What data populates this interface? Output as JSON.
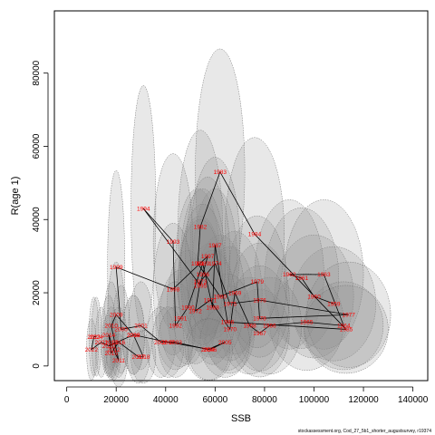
{
  "chart_data": {
    "type": "scatter",
    "title": "",
    "xlabel": "SSB",
    "ylabel": "R(age 1)",
    "credit": "stockassessment.org, Cod_27_5b1_shorter_augustsurvey, r19374",
    "xlim": [
      -5000,
      146000
    ],
    "ylim": [
      -4000,
      97000
    ],
    "xticks": [
      0,
      20000,
      40000,
      60000,
      80000,
      100000,
      120000,
      140000
    ],
    "yticks": [
      0,
      20000,
      40000,
      60000,
      80000
    ],
    "grid": false,
    "legend": "none",
    "line_color": "#000000",
    "label_color": "#ff0000",
    "ellipse_fill": "#8c8c8c",
    "ellipse_opacity": 0.2,
    "ellipse_stroke": "#6e6e6e",
    "points": [
      {
        "year": "1959",
        "ssb": 108000,
        "rec": 17000,
        "sd_ssb": 17000,
        "sd_rec": 6500
      },
      {
        "year": "1960",
        "ssb": 100000,
        "rec": 19000,
        "sd_ssb": 16000,
        "sd_rec": 7000
      },
      {
        "year": "1961",
        "ssb": 95000,
        "rec": 24000,
        "sd_ssb": 15000,
        "sd_rec": 8000
      },
      {
        "year": "1962",
        "ssb": 90000,
        "rec": 25000,
        "sd_ssb": 14000,
        "sd_rec": 8500
      },
      {
        "year": "1963",
        "ssb": 104000,
        "rec": 25000,
        "sd_ssb": 16000,
        "sd_rec": 8500
      },
      {
        "year": "1964",
        "ssb": 112000,
        "rec": 11000,
        "sd_ssb": 16000,
        "sd_rec": 5000
      },
      {
        "year": "1965",
        "ssb": 97000,
        "rec": 12000,
        "sd_ssb": 15000,
        "sd_rec": 5500
      },
      {
        "year": "1966",
        "ssb": 82000,
        "rec": 11000,
        "sd_ssb": 13000,
        "sd_rec": 5500
      },
      {
        "year": "1967",
        "ssb": 78000,
        "rec": 9000,
        "sd_ssb": 12000,
        "sd_rec": 5000
      },
      {
        "year": "1968",
        "ssb": 74000,
        "rec": 11000,
        "sd_ssb": 12000,
        "sd_rec": 5500
      },
      {
        "year": "1969",
        "ssb": 68000,
        "rec": 20000,
        "sd_ssb": 11000,
        "sd_rec": 7000
      },
      {
        "year": "1970",
        "ssb": 66000,
        "rec": 10000,
        "sd_ssb": 10000,
        "sd_rec": 5000
      },
      {
        "year": "1971",
        "ssb": 58000,
        "rec": 18000,
        "sd_ssb": 9000,
        "sd_rec": 6500
      },
      {
        "year": "1972",
        "ssb": 52000,
        "rec": 15000,
        "sd_ssb": 9000,
        "sd_rec": 6000
      },
      {
        "year": "1973",
        "ssb": 54000,
        "rec": 23000,
        "sd_ssb": 9000,
        "sd_rec": 7500
      },
      {
        "year": "1974",
        "ssb": 60000,
        "rec": 28000,
        "sd_ssb": 9000,
        "sd_rec": 8500
      },
      {
        "year": "1975",
        "ssb": 66000,
        "rec": 17000,
        "sd_ssb": 10000,
        "sd_rec": 6500
      },
      {
        "year": "1976",
        "ssb": 78000,
        "rec": 18000,
        "sd_ssb": 12000,
        "sd_rec": 6500
      },
      {
        "year": "1977",
        "ssb": 114000,
        "rec": 14000,
        "sd_ssb": 17000,
        "sd_rec": 6000
      },
      {
        "year": "1978",
        "ssb": 78000,
        "rec": 13000,
        "sd_ssb": 12000,
        "sd_rec": 6000
      },
      {
        "year": "1979",
        "ssb": 77000,
        "rec": 23000,
        "sd_ssb": 12000,
        "sd_rec": 7500
      },
      {
        "year": "1980",
        "ssb": 62000,
        "rec": 19000,
        "sd_ssb": 10000,
        "sd_rec": 7000
      },
      {
        "year": "1981",
        "ssb": 53000,
        "rec": 28000,
        "sd_ssb": 9000,
        "sd_rec": 8500
      },
      {
        "year": "1982",
        "ssb": 54000,
        "rec": 38000,
        "sd_ssb": 9000,
        "sd_rec": 11000
      },
      {
        "year": "1983",
        "ssb": 62000,
        "rec": 53000,
        "sd_ssb": 10000,
        "sd_rec": 14000
      },
      {
        "year": "1984",
        "ssb": 76000,
        "rec": 36000,
        "sd_ssb": 12000,
        "sd_rec": 11000
      },
      {
        "year": "1985",
        "ssb": 113000,
        "rec": 10000,
        "sd_ssb": 17000,
        "sd_rec": 5000
      },
      {
        "year": "1986",
        "ssb": 65000,
        "rec": 12000,
        "sd_ssb": 10000,
        "sd_rec": 5500
      },
      {
        "year": "1987",
        "ssb": 60000,
        "rec": 33000,
        "sd_ssb": 10000,
        "sd_rec": 10000
      },
      {
        "year": "1988",
        "ssb": 59000,
        "rec": 16000,
        "sd_ssb": 9500,
        "sd_rec": 6500
      },
      {
        "year": "1989",
        "ssb": 55000,
        "rec": 28000,
        "sd_ssb": 9000,
        "sd_rec": 8500
      },
      {
        "year": "1990",
        "ssb": 49000,
        "rec": 16000,
        "sd_ssb": 8500,
        "sd_rec": 6500
      },
      {
        "year": "1991",
        "ssb": 46000,
        "rec": 13000,
        "sd_ssb": 8500,
        "sd_rec": 5500
      },
      {
        "year": "1992",
        "ssb": 44000,
        "rec": 11000,
        "sd_ssb": 8000,
        "sd_rec": 5000
      },
      {
        "year": "1993",
        "ssb": 43000,
        "rec": 34000,
        "sd_ssb": 8000,
        "sd_rec": 10000
      },
      {
        "year": "1994",
        "ssb": 31000,
        "rec": 43000,
        "sd_ssb": 5000,
        "sd_rec": 14000
      },
      {
        "year": "1995",
        "ssb": 54000,
        "rec": 22000,
        "sd_ssb": 9000,
        "sd_rec": 7500
      },
      {
        "year": "1996",
        "ssb": 55000,
        "rec": 25000,
        "sd_ssb": 9000,
        "sd_rec": 8000
      },
      {
        "year": "1997",
        "ssb": 57000,
        "rec": 30000,
        "sd_ssb": 9000,
        "sd_rec": 9000
      },
      {
        "year": "1998",
        "ssb": 43000,
        "rec": 21000,
        "sd_ssb": 8000,
        "sd_rec": 7500
      },
      {
        "year": "1999",
        "ssb": 20000,
        "rec": 27000,
        "sd_ssb": 3500,
        "sd_rec": 11000
      },
      {
        "year": "2000",
        "ssb": 22000,
        "rec": 10000,
        "sd_ssb": 3500,
        "sd_rec": 5000
      },
      {
        "year": "2001",
        "ssb": 30000,
        "rec": 11000,
        "sd_ssb": 5000,
        "sd_rec": 5000
      },
      {
        "year": "2002",
        "ssb": 38000,
        "rec": 6500,
        "sd_ssb": 6000,
        "sd_rec": 4000
      },
      {
        "year": "2003",
        "ssb": 44000,
        "rec": 6500,
        "sd_ssb": 7000,
        "sd_rec": 4000
      },
      {
        "year": "2004",
        "ssb": 57000,
        "rec": 4500,
        "sd_ssb": 9000,
        "sd_rec": 3500
      },
      {
        "year": "2005",
        "ssb": 64000,
        "rec": 6500,
        "sd_ssb": 10000,
        "sd_rec": 4000
      },
      {
        "year": "2006",
        "ssb": 58000,
        "rec": 4500,
        "sd_ssb": 9000,
        "sd_rec": 3500
      },
      {
        "year": "2007",
        "ssb": 41000,
        "rec": 6500,
        "sd_ssb": 6500,
        "sd_rec": 4000
      },
      {
        "year": "2008",
        "ssb": 27000,
        "rec": 8500,
        "sd_ssb": 4500,
        "sd_rec": 4500
      },
      {
        "year": "2009",
        "ssb": 20000,
        "rec": 14000,
        "sd_ssb": 3500,
        "sd_rec": 6000
      },
      {
        "year": "2010",
        "ssb": 18000,
        "rec": 11000,
        "sd_ssb": 3000,
        "sd_rec": 5000
      },
      {
        "year": "2011",
        "ssb": 21000,
        "rec": 1500,
        "sd_ssb": 3500,
        "sd_rec": 3000
      },
      {
        "year": "2012",
        "ssb": 19000,
        "rec": 4500,
        "sd_ssb": 3000,
        "sd_rec": 3500
      },
      {
        "year": "2013",
        "ssb": 18000,
        "rec": 6500,
        "sd_ssb": 3000,
        "sd_rec": 4000
      },
      {
        "year": "2014",
        "ssb": 17000,
        "rec": 8500,
        "sd_ssb": 3000,
        "sd_rec": 4500
      },
      {
        "year": "2015",
        "ssb": 18000,
        "rec": 3500,
        "sd_ssb": 3000,
        "sd_rec": 3000
      },
      {
        "year": "2016",
        "ssb": 21000,
        "rec": 6500,
        "sd_ssb": 3500,
        "sd_rec": 4000
      },
      {
        "year": "2017",
        "ssb": 29000,
        "rec": 2500,
        "sd_ssb": 4500,
        "sd_rec": 3000
      },
      {
        "year": "2018",
        "ssb": 31000,
        "rec": 2500,
        "sd_ssb": 5000,
        "sd_rec": 3000
      },
      {
        "year": "2019",
        "ssb": 27000,
        "rec": 8500,
        "sd_ssb": 4500,
        "sd_rec": 4500
      },
      {
        "year": "2020",
        "ssb": 17000,
        "rec": 5500,
        "sd_ssb": 3000,
        "sd_rec": 3500
      },
      {
        "year": "2021",
        "ssb": 14000,
        "rec": 6500,
        "sd_ssb": 2500,
        "sd_rec": 4000
      },
      {
        "year": "2022",
        "ssb": 10000,
        "rec": 4500,
        "sd_ssb": 2000,
        "sd_rec": 3500
      },
      {
        "year": "2023",
        "ssb": 11000,
        "rec": 8000,
        "sd_ssb": 2000,
        "sd_rec": 4500
      },
      {
        "year": "2024",
        "ssb": 12000,
        "rec": 8000,
        "sd_ssb": 2000,
        "sd_rec": 4500
      }
    ]
  }
}
